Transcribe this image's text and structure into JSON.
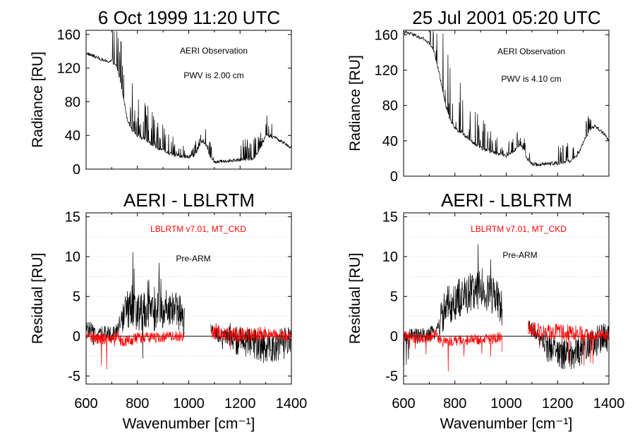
{
  "colors": {
    "observation": "#000000",
    "pre_arm": "#000000",
    "lblrtm": "#ff0000",
    "grid": "#bbbbbb"
  },
  "chart_data": [
    {
      "type": "line",
      "title": "6 Oct 1999  11:20 UTC",
      "xlabel": "",
      "ylabel": "Radiance [RU]",
      "xlim": [
        600,
        1400
      ],
      "ylim": [
        0,
        165
      ],
      "yticks": [
        "0",
        "40",
        "80",
        "120",
        "160"
      ],
      "annotations": [
        "AERI Observation",
        "PWV is 2.00 cm"
      ],
      "series": [
        {
          "name": "AERI Observation",
          "x": [
            600,
            640,
            680,
            700,
            720,
            740,
            760,
            780,
            800,
            830,
            860,
            900,
            950,
            1000,
            1030,
            1050,
            1070,
            1080,
            1100,
            1120,
            1150,
            1200,
            1250,
            1280,
            1300,
            1330,
            1350,
            1380,
            1400
          ],
          "y": [
            138,
            133,
            128,
            128,
            122,
            95,
            60,
            45,
            40,
            35,
            28,
            22,
            16,
            14,
            18,
            34,
            28,
            17,
            8,
            9,
            10,
            11,
            12,
            25,
            40,
            38,
            35,
            30,
            25
          ]
        }
      ]
    },
    {
      "type": "line",
      "title": "25 Jul 2001  05:20 UTC",
      "xlabel": "",
      "ylabel": "Radiance [RU]",
      "xlim": [
        600,
        1400
      ],
      "ylim": [
        0,
        165
      ],
      "yticks": [
        "0",
        "40",
        "80",
        "120",
        "160"
      ],
      "annotations": [
        "AERI Observation",
        "PWV is 4.10 cm"
      ],
      "series": [
        {
          "name": "AERI Observation",
          "x": [
            600,
            640,
            660,
            680,
            700,
            720,
            740,
            760,
            780,
            800,
            830,
            860,
            900,
            950,
            1000,
            1030,
            1050,
            1070,
            1080,
            1100,
            1120,
            1150,
            1200,
            1250,
            1280,
            1300,
            1330,
            1350,
            1380,
            1400
          ],
          "y": [
            163,
            160,
            157,
            155,
            150,
            140,
            115,
            85,
            65,
            55,
            48,
            40,
            32,
            27,
            23,
            28,
            35,
            30,
            20,
            14,
            13,
            14,
            15,
            17,
            25,
            38,
            55,
            56,
            48,
            40
          ]
        }
      ]
    },
    {
      "type": "line",
      "title": "AERI - LBLRTM",
      "xlabel": "Wavenumber [cm⁻¹]",
      "ylabel": "Residual [RU]",
      "xlim": [
        600,
        1400
      ],
      "ylim": [
        -6,
        15.5
      ],
      "xticks": [
        "600",
        "800",
        "1000",
        "1200",
        "1400"
      ],
      "yticks": [
        "-5",
        "0",
        "5",
        "10",
        "15"
      ],
      "annotations": [
        "LBLRTM v7.01, MT_CKD",
        "Pre-ARM"
      ],
      "gaps": [
        [
          985,
          1085
        ]
      ],
      "series": [
        {
          "name": "Pre-ARM",
          "x": [
            600,
            650,
            700,
            720,
            740,
            760,
            780,
            800,
            830,
            860,
            900,
            950,
            980,
            1085,
            1100,
            1150,
            1200,
            1250,
            1300,
            1350,
            1400
          ],
          "y": [
            1.0,
            0.3,
            0.3,
            0.8,
            2.5,
            3.5,
            3.0,
            3.2,
            3.0,
            2.8,
            3.8,
            3.2,
            2.3,
            0.5,
            0.3,
            0,
            -0.5,
            -1.0,
            -1.5,
            -1.0,
            -0.8
          ]
        },
        {
          "name": "LBLRTM v7.01, MT_CKD",
          "x": [
            600,
            650,
            700,
            720,
            740,
            760,
            800,
            850,
            900,
            950,
            980,
            1085,
            1100,
            1150,
            1200,
            1250,
            1300,
            1350,
            1400
          ],
          "y": [
            0,
            -0.3,
            -0.4,
            0.2,
            -0.8,
            -0.6,
            -0.2,
            -0.2,
            -0.1,
            0,
            0,
            0.8,
            0.6,
            0.3,
            0.2,
            0.2,
            0.3,
            0.1,
            0
          ]
        }
      ]
    },
    {
      "type": "line",
      "title": "AERI - LBLRTM",
      "xlabel": "Wavenumber [cm⁻¹]",
      "ylabel": "Residual [RU]",
      "xlim": [
        600,
        1400
      ],
      "ylim": [
        -6,
        15.5
      ],
      "xticks": [
        "600",
        "800",
        "1000",
        "1200",
        "1400"
      ],
      "yticks": [
        "-5",
        "0",
        "5",
        "10",
        "15"
      ],
      "annotations": [
        "LBLRTM v7.01, MT_CKD",
        "Pre-ARM"
      ],
      "gaps": [
        [
          985,
          1085
        ]
      ],
      "series": [
        {
          "name": "Pre-ARM",
          "x": [
            600,
            650,
            700,
            720,
            740,
            760,
            780,
            800,
            830,
            860,
            900,
            950,
            980,
            1085,
            1100,
            1150,
            1200,
            1250,
            1300,
            1350,
            1400
          ],
          "y": [
            0,
            0,
            0.2,
            0.5,
            1.5,
            3.5,
            4.0,
            4.5,
            5.0,
            5.5,
            6.0,
            5.0,
            3.5,
            1.2,
            0.8,
            -1.0,
            -2.0,
            -2.5,
            -1.5,
            -0.5,
            -0.2
          ]
        },
        {
          "name": "LBLRTM v7.01, MT_CKD",
          "x": [
            600,
            650,
            700,
            720,
            740,
            760,
            800,
            850,
            900,
            950,
            980,
            1085,
            1100,
            1150,
            1200,
            1250,
            1300,
            1350,
            1400
          ],
          "y": [
            0,
            -0.2,
            -0.2,
            0.3,
            -0.3,
            -0.8,
            -0.6,
            -0.5,
            -0.4,
            -0.3,
            -0.1,
            1.0,
            0.9,
            0.5,
            0.6,
            0.5,
            0.3,
            0.2,
            0
          ]
        }
      ]
    }
  ]
}
